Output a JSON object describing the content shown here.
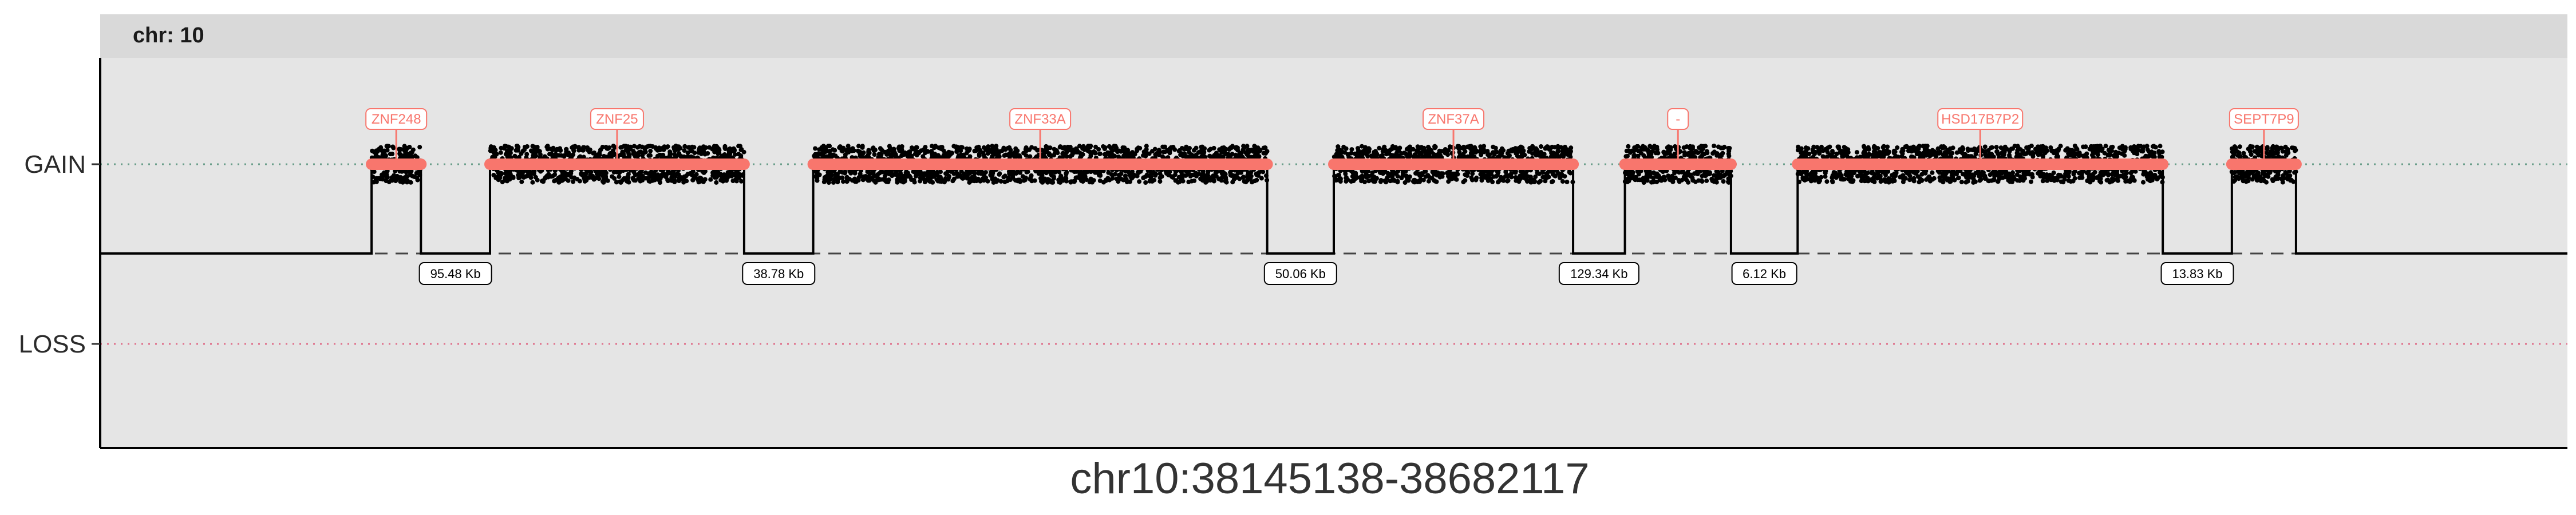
{
  "chart_data": {
    "type": "line",
    "facet_title": "chr: 10",
    "xlabel": "chr10:38145138-38682117",
    "y_levels": [
      "GAIN",
      "LOSS"
    ],
    "colors": {
      "gain_line": "#f8766d",
      "gain_ref": "#6a9e8a",
      "loss_ref": "#e0708a",
      "points": "#000000",
      "panel": "#e5e5e5",
      "strip": "#d9d9d9"
    },
    "segments": [
      {
        "gene": "ZNF248",
        "start": 0.11,
        "end": 0.13
      },
      {
        "gene": "ZNF25",
        "start": 0.158,
        "end": 0.261
      },
      {
        "gene": "ZNF33A",
        "start": 0.289,
        "end": 0.473
      },
      {
        "gene": "ZNF37A",
        "start": 0.5,
        "end": 0.597
      },
      {
        "gene": "-",
        "start": 0.618,
        "end": 0.661
      },
      {
        "gene": "HSD17B7P2",
        "start": 0.688,
        "end": 0.836
      },
      {
        "gene": "SEPT7P9",
        "start": 0.864,
        "end": 0.89
      }
    ],
    "gaps": [
      "95.48 Kb",
      "38.78 Kb",
      "50.06 Kb",
      "129.34 Kb",
      "6.12 Kb",
      "13.83 Kb"
    ]
  }
}
